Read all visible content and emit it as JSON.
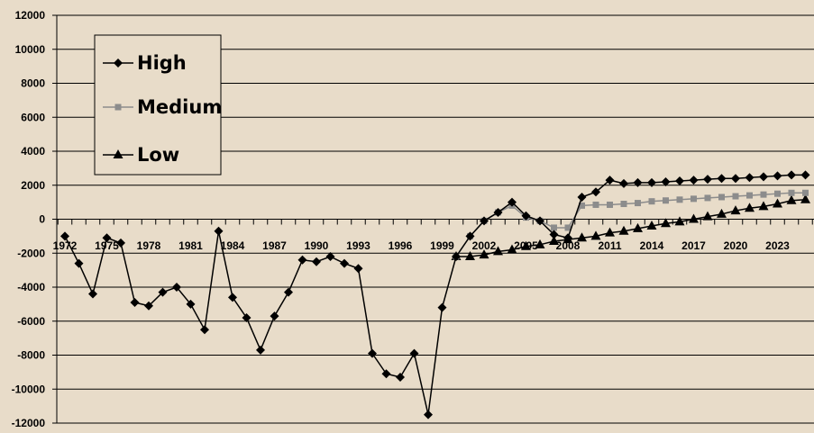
{
  "chart_data": {
    "type": "line",
    "title": "",
    "xlabel": "",
    "ylabel": "",
    "ylim": [
      -12000,
      12000
    ],
    "xlim": [
      1972,
      2025
    ],
    "y_ticks": [
      "12000",
      "10000",
      "8000",
      "6000",
      "4000",
      "2000",
      "0",
      "-2000",
      "-4000",
      "-6000",
      "-8000",
      "-10000",
      "-12000"
    ],
    "x_ticks": [
      "1972",
      "1975",
      "1978",
      "1981",
      "1984",
      "1987",
      "1990",
      "1993",
      "1996",
      "1999",
      "2002",
      "2005",
      "2008",
      "2011",
      "2014",
      "2017",
      "2020",
      "2023"
    ],
    "grid": "horizontal",
    "legend_position": "top-left",
    "series": [
      {
        "name": "High",
        "marker": "diamond",
        "color": "#000000",
        "x": [
          1972,
          1973,
          1974,
          1975,
          1976,
          1977,
          1978,
          1979,
          1980,
          1981,
          1982,
          1983,
          1984,
          1985,
          1986,
          1987,
          1988,
          1989,
          1990,
          1991,
          1992,
          1993,
          1994,
          1995,
          1996,
          1997,
          1998,
          1999,
          2000,
          2001,
          2002,
          2003,
          2004,
          2005,
          2006,
          2007,
          2008,
          2009,
          2010,
          2011,
          2012,
          2013,
          2014,
          2015,
          2016,
          2017,
          2018,
          2019,
          2020,
          2021,
          2022,
          2023,
          2024,
          2025
        ],
        "values": [
          -1000,
          -2600,
          -4400,
          -1100,
          -1400,
          -4900,
          -5100,
          -4300,
          -4000,
          -5000,
          -6500,
          -700,
          -4600,
          -5800,
          -7700,
          -5700,
          -4300,
          -2400,
          -2500,
          -2200,
          -2600,
          -2900,
          -7900,
          -9100,
          -9300,
          -7900,
          -11500,
          -5200,
          -2200,
          -1000,
          -100,
          400,
          1000,
          200,
          -100,
          -900,
          -1100,
          1300,
          1600,
          2300,
          2100,
          2150,
          2150,
          2200,
          2250,
          2300,
          2350,
          2400,
          2400,
          2450,
          2500,
          2550,
          2600,
          2600
        ]
      },
      {
        "name": "Medium",
        "marker": "square",
        "color": "#8c8c8c",
        "x": [
          2000,
          2001,
          2002,
          2003,
          2004,
          2005,
          2006,
          2007,
          2008,
          2009,
          2010,
          2011,
          2012,
          2013,
          2014,
          2015,
          2016,
          2017,
          2018,
          2019,
          2020,
          2021,
          2022,
          2023,
          2024,
          2025
        ],
        "values": [
          -2200,
          -1000,
          -100,
          400,
          800,
          100,
          -100,
          -500,
          -500,
          800,
          850,
          850,
          900,
          950,
          1050,
          1100,
          1150,
          1200,
          1250,
          1300,
          1350,
          1400,
          1450,
          1500,
          1550,
          1550
        ]
      },
      {
        "name": "Low",
        "marker": "triangle",
        "color": "#000000",
        "x": [
          2000,
          2001,
          2002,
          2003,
          2004,
          2005,
          2006,
          2007,
          2008,
          2009,
          2010,
          2011,
          2012,
          2013,
          2014,
          2015,
          2016,
          2017,
          2018,
          2019,
          2020,
          2021,
          2022,
          2023,
          2024,
          2025
        ],
        "values": [
          -2200,
          -2200,
          -2100,
          -1900,
          -1800,
          -1600,
          -1500,
          -1300,
          -1200,
          -1100,
          -1000,
          -800,
          -700,
          -550,
          -400,
          -250,
          -150,
          0,
          150,
          300,
          500,
          650,
          750,
          900,
          1100,
          1150
        ]
      }
    ]
  }
}
